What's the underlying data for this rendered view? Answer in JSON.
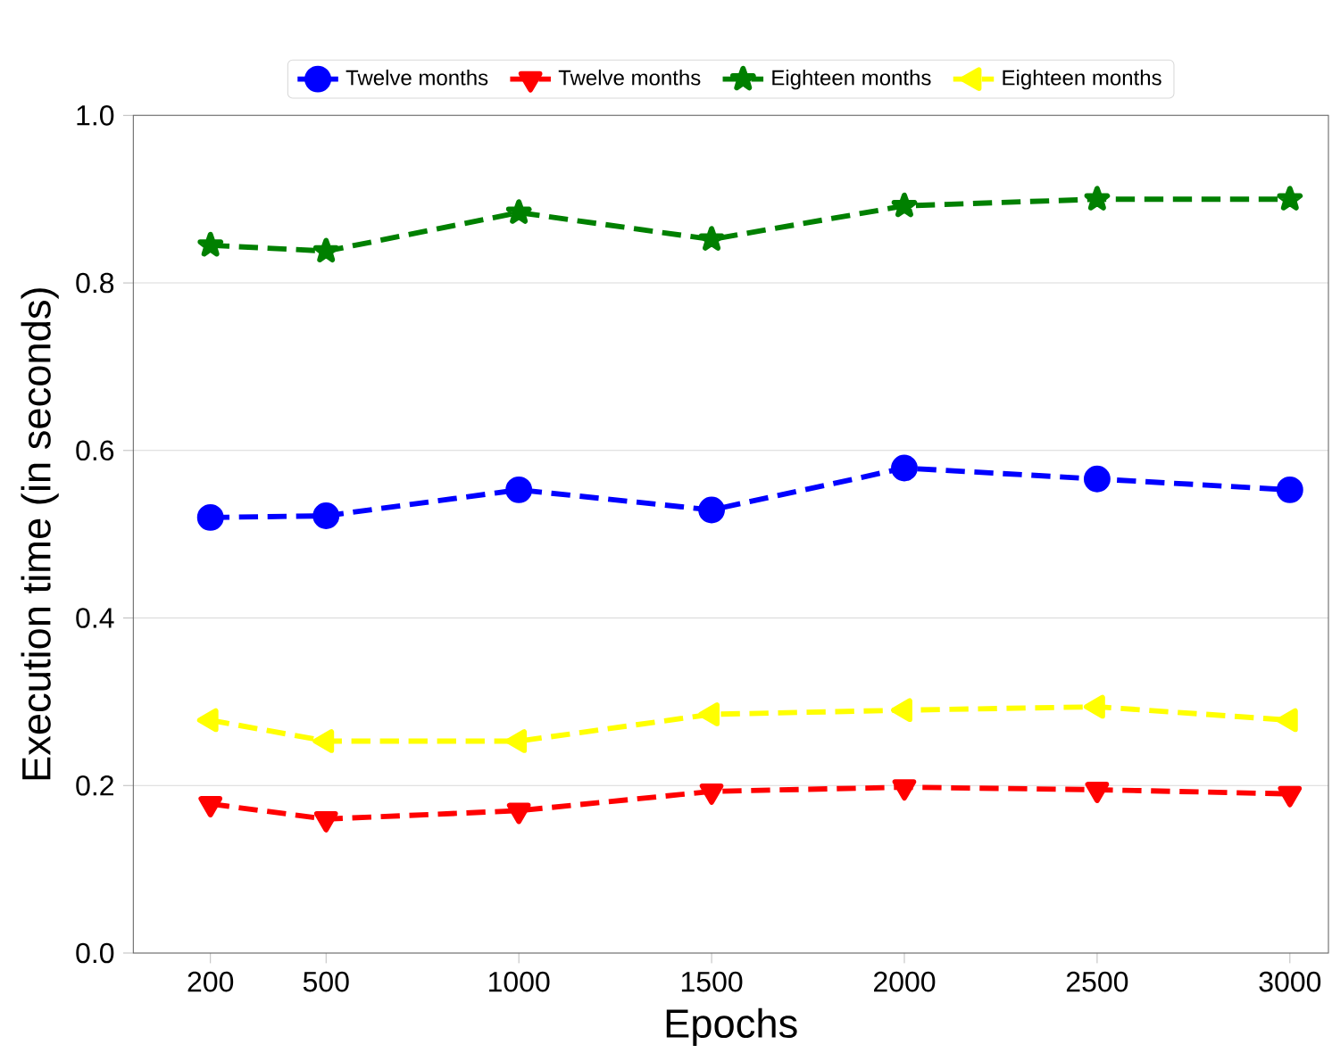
{
  "chart_data": {
    "type": "line",
    "xlabel": "Epochs",
    "ylabel": "Execution time (in seconds)",
    "x": [
      200,
      500,
      1000,
      1500,
      2000,
      2500,
      3000
    ],
    "series": [
      {
        "name": "Twelve months",
        "color": "#0000ff",
        "marker": "circle",
        "values": [
          0.52,
          0.522,
          0.553,
          0.529,
          0.579,
          0.566,
          0.553
        ]
      },
      {
        "name": "Twelve months",
        "color": "#ff0000",
        "marker": "triangle",
        "values": [
          0.178,
          0.16,
          0.17,
          0.193,
          0.198,
          0.195,
          0.19
        ]
      },
      {
        "name": "Eighteen months",
        "color": "#008000",
        "marker": "star",
        "values": [
          0.845,
          0.838,
          0.884,
          0.852,
          0.892,
          0.9,
          0.9
        ]
      },
      {
        "name": "Eighteen months",
        "color": "#ffff00",
        "marker": "triangle",
        "values": [
          0.278,
          0.253,
          0.253,
          0.285,
          0.29,
          0.294,
          0.278
        ]
      }
    ],
    "xlim": [
      0,
      3100
    ],
    "ylim": [
      0,
      1.0
    ],
    "xticks": [
      200,
      500,
      1000,
      1500,
      2000,
      2500,
      3000
    ],
    "yticks": [
      {
        "value": 0,
        "label": "0.0"
      },
      0.2,
      0.4,
      0.6,
      0.8,
      {
        "value": 1,
        "label": "1.0"
      }
    ],
    "grid": "y",
    "legend": "top",
    "line_style": "dashed"
  }
}
